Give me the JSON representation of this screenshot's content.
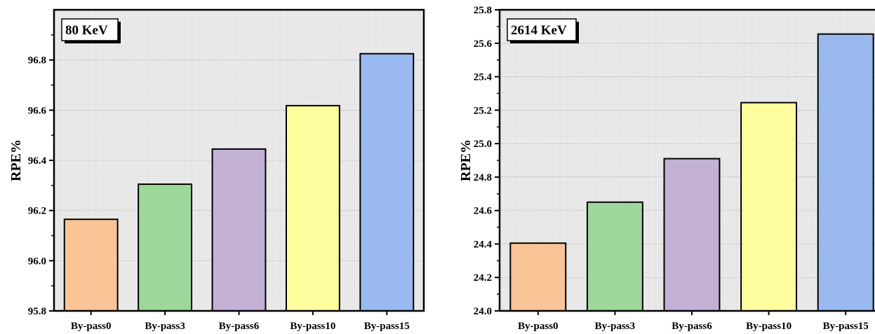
{
  "chart_data": [
    {
      "type": "bar",
      "annotation": "80 KeV",
      "ylabel": "RPE%",
      "xlabel": "",
      "categories": [
        "By-pass0",
        "By-pass3",
        "By-pass6",
        "By-pass10",
        "By-pass15"
      ],
      "values": [
        96.165,
        96.305,
        96.445,
        96.618,
        96.825
      ],
      "colors": [
        "#f9c596",
        "#9dd89a",
        "#c3b1d6",
        "#fdfd9e",
        "#9ab9f0"
      ],
      "ylim": [
        95.8,
        97.0
      ],
      "yticks": [
        "95.8",
        "96.0",
        "96.2",
        "96.4",
        "96.6",
        "96.8"
      ],
      "grid": true
    },
    {
      "type": "bar",
      "annotation": "2614 KeV",
      "ylabel": "RPE%",
      "xlabel": "",
      "categories": [
        "By-pass0",
        "By-pass3",
        "By-pass6",
        "By-pass10",
        "By-pass15"
      ],
      "values": [
        24.405,
        24.65,
        24.91,
        25.245,
        25.655
      ],
      "colors": [
        "#f9c596",
        "#9dd89a",
        "#c3b1d6",
        "#fdfd9e",
        "#9ab9f0"
      ],
      "ylim": [
        24.0,
        25.8
      ],
      "yticks": [
        "24.0",
        "24.2",
        "24.4",
        "24.6",
        "24.8",
        "25.0",
        "25.2",
        "25.4",
        "25.6",
        "25.8"
      ],
      "grid": true
    }
  ]
}
